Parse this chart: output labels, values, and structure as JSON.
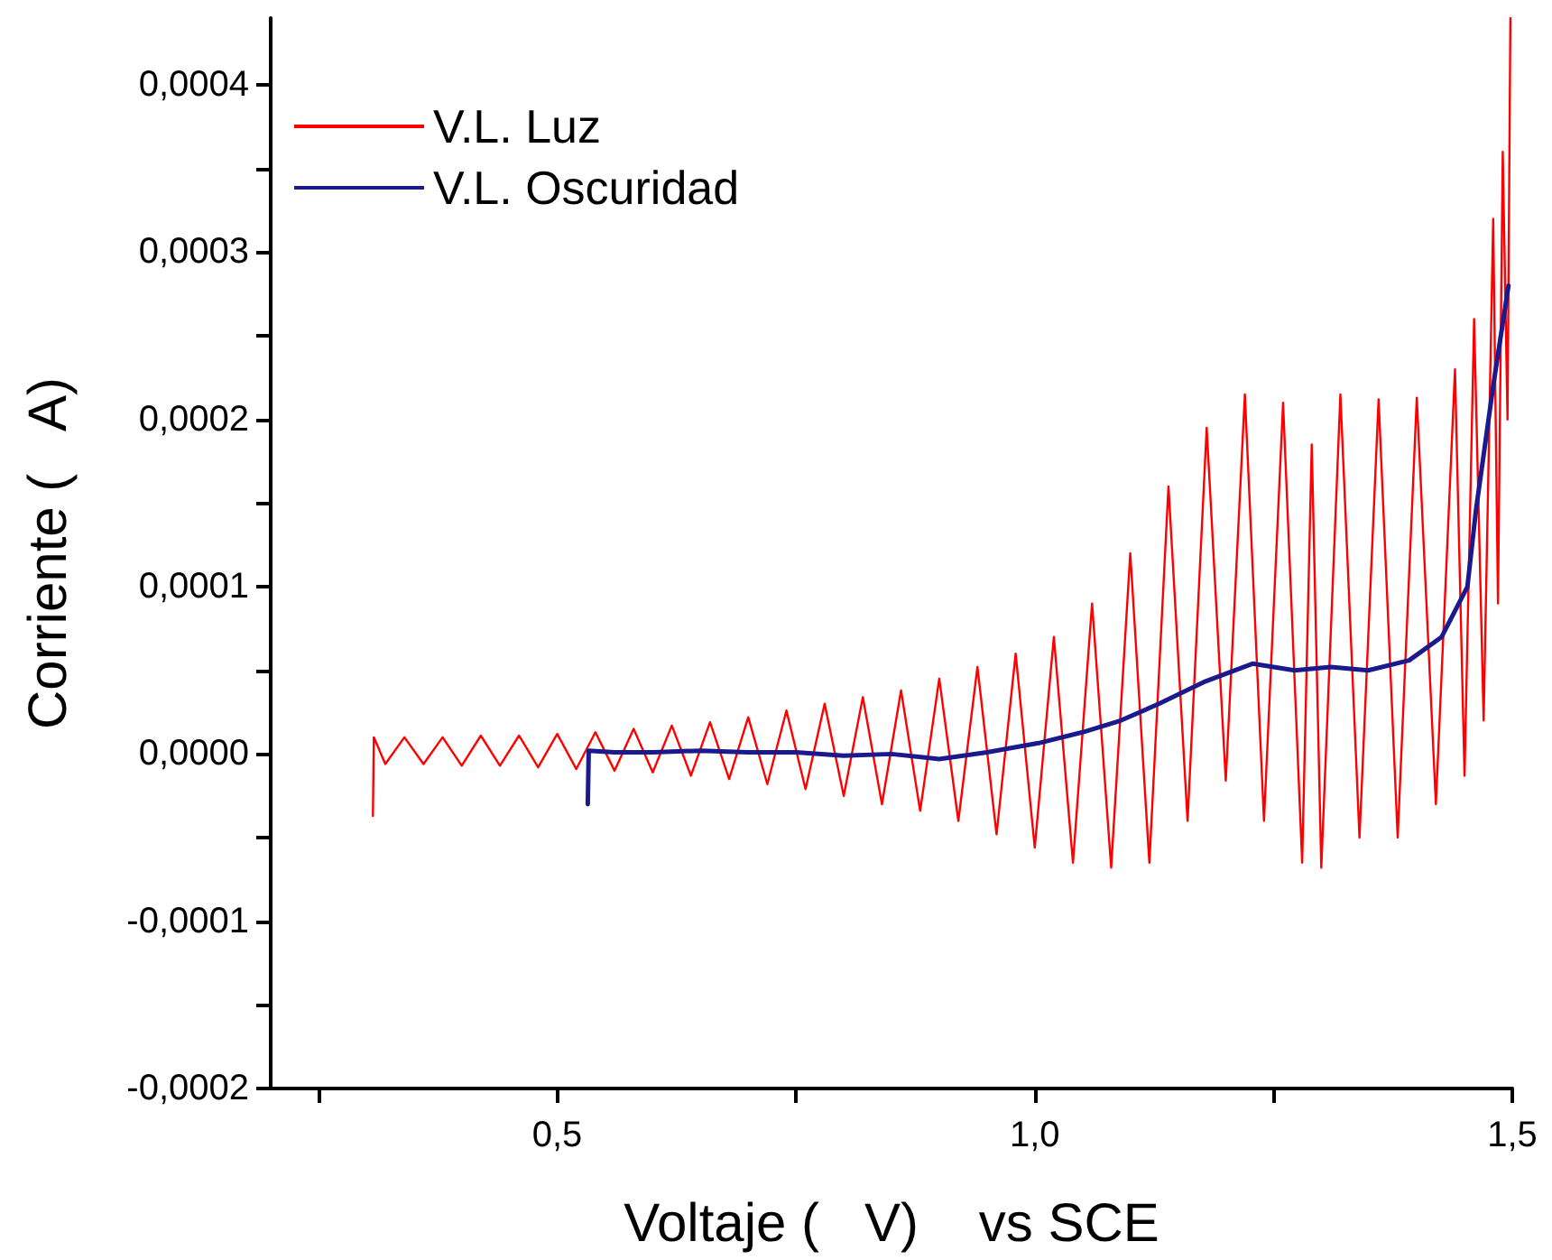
{
  "chart_data": {
    "type": "line",
    "xlabel": "Voltaje (   V)    vs SCE",
    "ylabel": "Corriente (   A)",
    "xlim": [
      0.2,
      1.5
    ],
    "xticks": [
      {
        "value": 0.25,
        "label": null
      },
      {
        "value": 0.5,
        "label": "0,5"
      },
      {
        "value": 0.75,
        "label": null
      },
      {
        "value": 1.0,
        "label": "1,0"
      },
      {
        "value": 1.25,
        "label": null
      },
      {
        "value": 1.5,
        "label": "1,5"
      }
    ],
    "ylim": [
      -0.0002,
      0.00044
    ],
    "yticks": [
      {
        "value": -0.0002,
        "label": "-0,0002"
      },
      {
        "value": -0.00015,
        "label": null
      },
      {
        "value": -0.0001,
        "label": "-0,0001"
      },
      {
        "value": -5e-05,
        "label": null
      },
      {
        "value": 0,
        "label": "0,0000"
      },
      {
        "value": 5e-05,
        "label": null
      },
      {
        "value": 0.0001,
        "label": "0,0001"
      },
      {
        "value": 0.00015,
        "label": null
      },
      {
        "value": 0.0002,
        "label": "0,0002"
      },
      {
        "value": 0.00025,
        "label": null
      },
      {
        "value": 0.0003,
        "label": "0,0003"
      },
      {
        "value": 0.00035,
        "label": null
      },
      {
        "value": 0.0004,
        "label": "0,0004"
      }
    ],
    "grid": false,
    "legend": "top left",
    "marker": "none",
    "line_style": "solid",
    "series": [
      {
        "name": "V.L. Luz",
        "color": "#ff0000",
        "x": [
          0.307,
          0.308,
          0.32,
          0.34,
          0.36,
          0.38,
          0.4,
          0.42,
          0.44,
          0.46,
          0.48,
          0.5,
          0.52,
          0.54,
          0.56,
          0.58,
          0.6,
          0.62,
          0.64,
          0.66,
          0.68,
          0.7,
          0.72,
          0.74,
          0.76,
          0.78,
          0.8,
          0.82,
          0.84,
          0.86,
          0.88,
          0.9,
          0.92,
          0.94,
          0.96,
          0.98,
          1.0,
          1.02,
          1.04,
          1.06,
          1.08,
          1.1,
          1.12,
          1.14,
          1.16,
          1.18,
          1.2,
          1.22,
          1.24,
          1.26,
          1.28,
          1.29,
          1.3,
          1.32,
          1.34,
          1.36,
          1.38,
          1.4,
          1.42,
          1.44,
          1.45,
          1.46,
          1.47,
          1.48,
          1.485,
          1.49,
          1.495,
          1.498
        ],
        "values": [
          -3.7e-05,
          1e-05,
          -6e-06,
          1e-05,
          -6e-06,
          1e-05,
          -7e-06,
          1.1e-05,
          -7e-06,
          1.1e-05,
          -8e-06,
          1.2e-05,
          -9e-06,
          1.3e-05,
          -1e-05,
          1.5e-05,
          -1.1e-05,
          1.7e-05,
          -1.3e-05,
          1.9e-05,
          -1.5e-05,
          2.2e-05,
          -1.8e-05,
          2.6e-05,
          -2.1e-05,
          3e-05,
          -2.5e-05,
          3.4e-05,
          -3e-05,
          3.8e-05,
          -3.4e-05,
          4.5e-05,
          -4e-05,
          5.2e-05,
          -4.8e-05,
          6e-05,
          -5.6e-05,
          7e-05,
          -6.5e-05,
          9e-05,
          -6.8e-05,
          0.00012,
          -6.5e-05,
          0.00016,
          -4e-05,
          0.000195,
          -1.6e-05,
          0.000215,
          -4e-05,
          0.00021,
          -6.5e-05,
          0.000185,
          -6.8e-05,
          0.000215,
          -5e-05,
          0.000212,
          -5e-05,
          0.000213,
          -3e-05,
          0.00023,
          -1.3e-05,
          0.00026,
          2e-05,
          0.00032,
          9e-05,
          0.00036,
          0.0002,
          0.00044
        ]
      },
      {
        "name": "V.L. Oscuridad",
        "color": "#1a1a8c",
        "x": [
          0.532,
          0.533,
          0.56,
          0.6,
          0.65,
          0.7,
          0.75,
          0.8,
          0.85,
          0.9,
          0.95,
          1.004,
          1.05,
          1.09,
          1.13,
          1.177,
          1.228,
          1.272,
          1.31,
          1.349,
          1.392,
          1.426,
          1.453,
          1.462,
          1.48,
          1.496
        ],
        "values": [
          -3e-05,
          2e-06,
          1e-06,
          1e-06,
          2e-06,
          1e-06,
          1e-06,
          -1e-06,
          0,
          -3e-06,
          1e-06,
          6.5e-06,
          1.3e-05,
          2e-05,
          3e-05,
          4.3e-05,
          5.4e-05,
          5e-05,
          5.2e-05,
          5e-05,
          5.6e-05,
          7e-05,
          0.0001,
          0.000146,
          0.00022,
          0.00028
        ]
      }
    ]
  }
}
